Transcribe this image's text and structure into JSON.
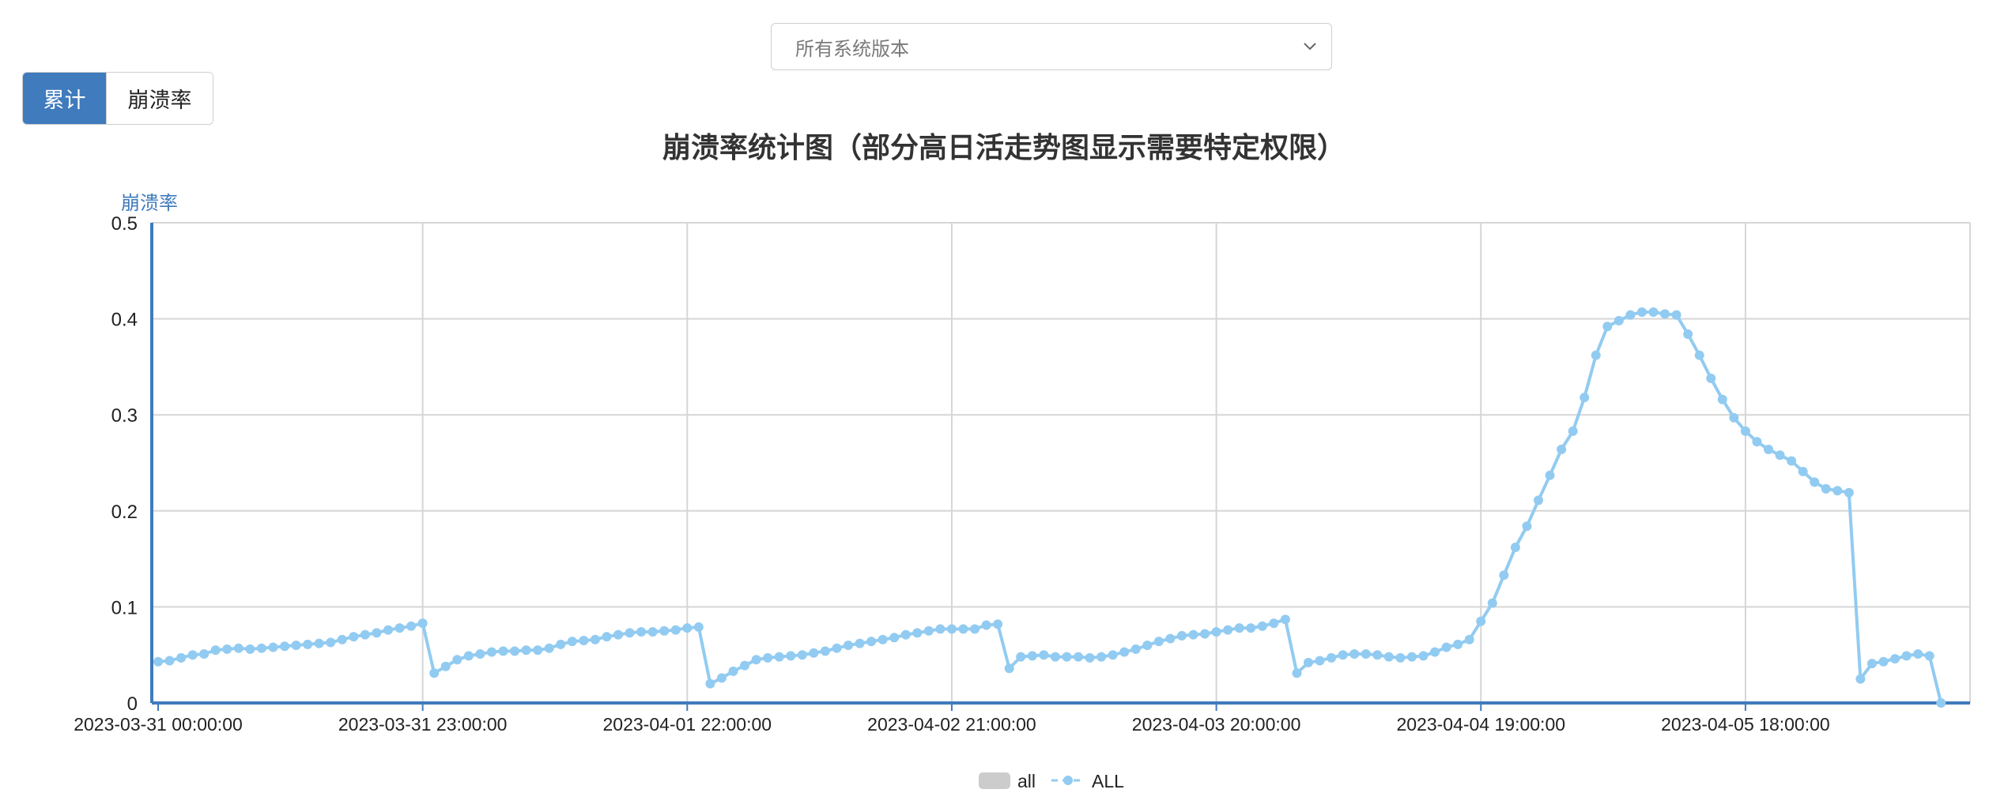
{
  "filter": {
    "placeholder": "所有系统版本",
    "chevron_icon": "chevron-down-icon"
  },
  "mode_buttons": {
    "cumulative_label": "累计",
    "crash_rate_label": "崩溃率",
    "active": "cumulative",
    "active_color": "#3f7bbd"
  },
  "chart_data": {
    "type": "line",
    "title": "崩溃率统计图（部分高日活走势图显示需要特定权限）",
    "ylabel": "崩溃率",
    "xlabel": "",
    "ylim": [
      0,
      0.5
    ],
    "yticks": [
      0,
      0.1,
      0.2,
      0.3,
      0.4,
      0.5
    ],
    "ytick_labels": [
      "0",
      "0.1",
      "0.2",
      "0.3",
      "0.4",
      "0.5"
    ],
    "x_unit": "hour",
    "x_range": [
      "2023-03-31 00:00:00",
      "2023-04-06 11:00:00"
    ],
    "xticks": [
      "2023-03-31 00:00:00",
      "2023-03-31 23:00:00",
      "2023-04-01 22:00:00",
      "2023-04-02 21:00:00",
      "2023-04-03 20:00:00",
      "2023-04-04 19:00:00",
      "2023-04-05 18:00:00"
    ],
    "grid": true,
    "legend_position": "bottom-center",
    "x_start": "2023-03-31 00:00:00",
    "series": [
      {
        "name": "all",
        "color": "#cccccc",
        "values": []
      },
      {
        "name": "ALL",
        "color": "#92cbf1",
        "values": [
          0.043,
          0.044,
          0.047,
          0.05,
          0.051,
          0.055,
          0.056,
          0.057,
          0.056,
          0.057,
          0.058,
          0.059,
          0.06,
          0.061,
          0.062,
          0.063,
          0.066,
          0.069,
          0.071,
          0.073,
          0.076,
          0.078,
          0.08,
          0.083,
          0.031,
          0.038,
          0.045,
          0.049,
          0.051,
          0.053,
          0.054,
          0.054,
          0.055,
          0.055,
          0.057,
          0.061,
          0.064,
          0.065,
          0.066,
          0.069,
          0.071,
          0.073,
          0.074,
          0.074,
          0.075,
          0.076,
          0.078,
          0.079,
          0.02,
          0.026,
          0.033,
          0.039,
          0.045,
          0.047,
          0.048,
          0.049,
          0.05,
          0.052,
          0.054,
          0.057,
          0.06,
          0.062,
          0.064,
          0.066,
          0.068,
          0.071,
          0.073,
          0.075,
          0.077,
          0.077,
          0.077,
          0.077,
          0.081,
          0.082,
          0.036,
          0.048,
          0.049,
          0.05,
          0.048,
          0.048,
          0.048,
          0.047,
          0.048,
          0.05,
          0.053,
          0.056,
          0.06,
          0.064,
          0.067,
          0.07,
          0.071,
          0.072,
          0.074,
          0.076,
          0.078,
          0.078,
          0.08,
          0.083,
          0.087,
          0.031,
          0.042,
          0.044,
          0.047,
          0.05,
          0.051,
          0.051,
          0.05,
          0.048,
          0.047,
          0.048,
          0.049,
          0.053,
          0.058,
          0.061,
          0.066,
          0.085,
          0.104,
          0.133,
          0.162,
          0.184,
          0.211,
          0.237,
          0.264,
          0.283,
          0.318,
          0.362,
          0.392,
          0.398,
          0.404,
          0.407,
          0.407,
          0.405,
          0.404,
          0.384,
          0.362,
          0.338,
          0.316,
          0.297,
          0.283,
          0.272,
          0.264,
          0.258,
          0.252,
          0.241,
          0.23,
          0.223,
          0.221,
          0.219,
          0.025,
          0.041,
          0.043,
          0.046,
          0.049,
          0.051,
          0.049,
          0.0
        ]
      }
    ]
  }
}
